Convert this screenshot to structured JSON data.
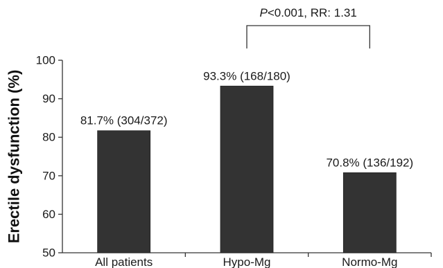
{
  "chart_data": {
    "type": "bar",
    "title": "",
    "xlabel": "",
    "ylabel": "Erectile dysfunction (%)",
    "ylim": [
      50,
      100
    ],
    "yticks": [
      50,
      60,
      70,
      80,
      90,
      100
    ],
    "categories": [
      "All patients",
      "Hypo-Mg",
      "Normo-Mg"
    ],
    "values": [
      81.7,
      93.3,
      70.8
    ],
    "data_labels": [
      "81.7% (304/372)",
      "93.3% (168/180)",
      "70.8% (136/192)"
    ],
    "bar_color": "#333333",
    "grid": false,
    "legend": "none",
    "annotation": {
      "between": [
        "Hypo-Mg",
        "Normo-Mg"
      ],
      "p_prefix": "P",
      "text_rest": "<0.001, RR: 1.31"
    }
  }
}
